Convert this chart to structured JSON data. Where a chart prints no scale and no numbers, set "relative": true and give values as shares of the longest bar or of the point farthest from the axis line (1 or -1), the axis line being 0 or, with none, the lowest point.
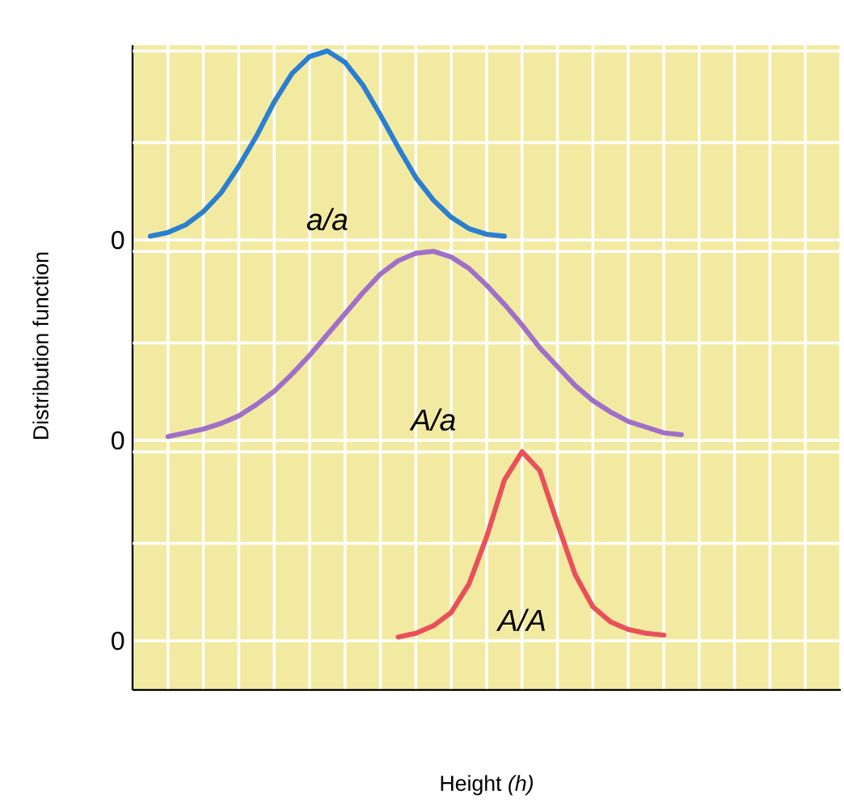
{
  "chart_data": [
    {
      "type": "line",
      "relative": true,
      "grid": true,
      "annotations": [
        "0"
      ],
      "categories": [
        null,
        null,
        null,
        null,
        null,
        null,
        null,
        null,
        null,
        null,
        null,
        null,
        null,
        null,
        null,
        null,
        null,
        null,
        null,
        null,
        null,
        null,
        null,
        null,
        null,
        null,
        null,
        null,
        null,
        null,
        null,
        null,
        null,
        null,
        null,
        null,
        null,
        null,
        null,
        null,
        null
      ],
      "series": [
        {
          "name": "a/a",
          "color": "#2a7fd0",
          "values": [
            null,
            0.02,
            0.04,
            0.08,
            0.15,
            0.25,
            0.39,
            0.55,
            0.73,
            0.88,
            0.97,
            1.0,
            0.94,
            0.82,
            0.66,
            0.49,
            0.33,
            0.21,
            0.12,
            0.06,
            0.03,
            0.02,
            null,
            null,
            null,
            null,
            null,
            null,
            null,
            null,
            null,
            null,
            null,
            null,
            null,
            null,
            null,
            null,
            null,
            null,
            null
          ]
        }
      ]
    },
    {
      "type": "line",
      "relative": true,
      "grid": true,
      "annotations": [
        "0"
      ],
      "ylabel": "Distribution function",
      "categories": [
        null,
        null,
        null,
        null,
        null,
        null,
        null,
        null,
        null,
        null,
        null,
        null,
        null,
        null,
        null,
        null,
        null,
        null,
        null,
        null,
        null,
        null,
        null,
        null,
        null,
        null,
        null,
        null,
        null,
        null,
        null,
        null,
        null,
        null,
        null,
        null,
        null,
        null,
        null,
        null,
        null
      ],
      "series": [
        {
          "name": "A/a",
          "color": "#a070c8",
          "values": [
            null,
            null,
            0.02,
            0.04,
            0.06,
            0.09,
            0.13,
            0.19,
            0.26,
            0.35,
            0.45,
            0.56,
            0.67,
            0.78,
            0.88,
            0.95,
            0.99,
            1.0,
            0.97,
            0.91,
            0.82,
            0.72,
            0.61,
            0.49,
            0.39,
            0.29,
            0.21,
            0.15,
            0.1,
            0.07,
            0.04,
            0.03,
            null,
            null,
            null,
            null,
            null,
            null,
            null,
            null,
            null
          ]
        }
      ]
    },
    {
      "type": "line",
      "relative": true,
      "grid": true,
      "annotations": [
        "0"
      ],
      "xlabel": "Height *(h)*",
      "categories": [
        null,
        null,
        null,
        null,
        null,
        null,
        null,
        null,
        null,
        null,
        null,
        null,
        null,
        null,
        null,
        null,
        null,
        null,
        null,
        null,
        null,
        null,
        null,
        null,
        null,
        null,
        null,
        null,
        null,
        null,
        null,
        null,
        null,
        null,
        null,
        null,
        null,
        null,
        null,
        null,
        null
      ],
      "series": [
        {
          "name": "A/A",
          "color": "#e8505a",
          "values": [
            null,
            null,
            null,
            null,
            null,
            null,
            null,
            null,
            null,
            null,
            null,
            null,
            null,
            null,
            null,
            0.02,
            0.04,
            0.08,
            0.15,
            0.3,
            0.55,
            0.85,
            1.0,
            0.9,
            0.62,
            0.35,
            0.18,
            0.1,
            0.06,
            0.04,
            0.03,
            null,
            null,
            null,
            null,
            null,
            null,
            null,
            null,
            null,
            null
          ]
        }
      ]
    }
  ]
}
